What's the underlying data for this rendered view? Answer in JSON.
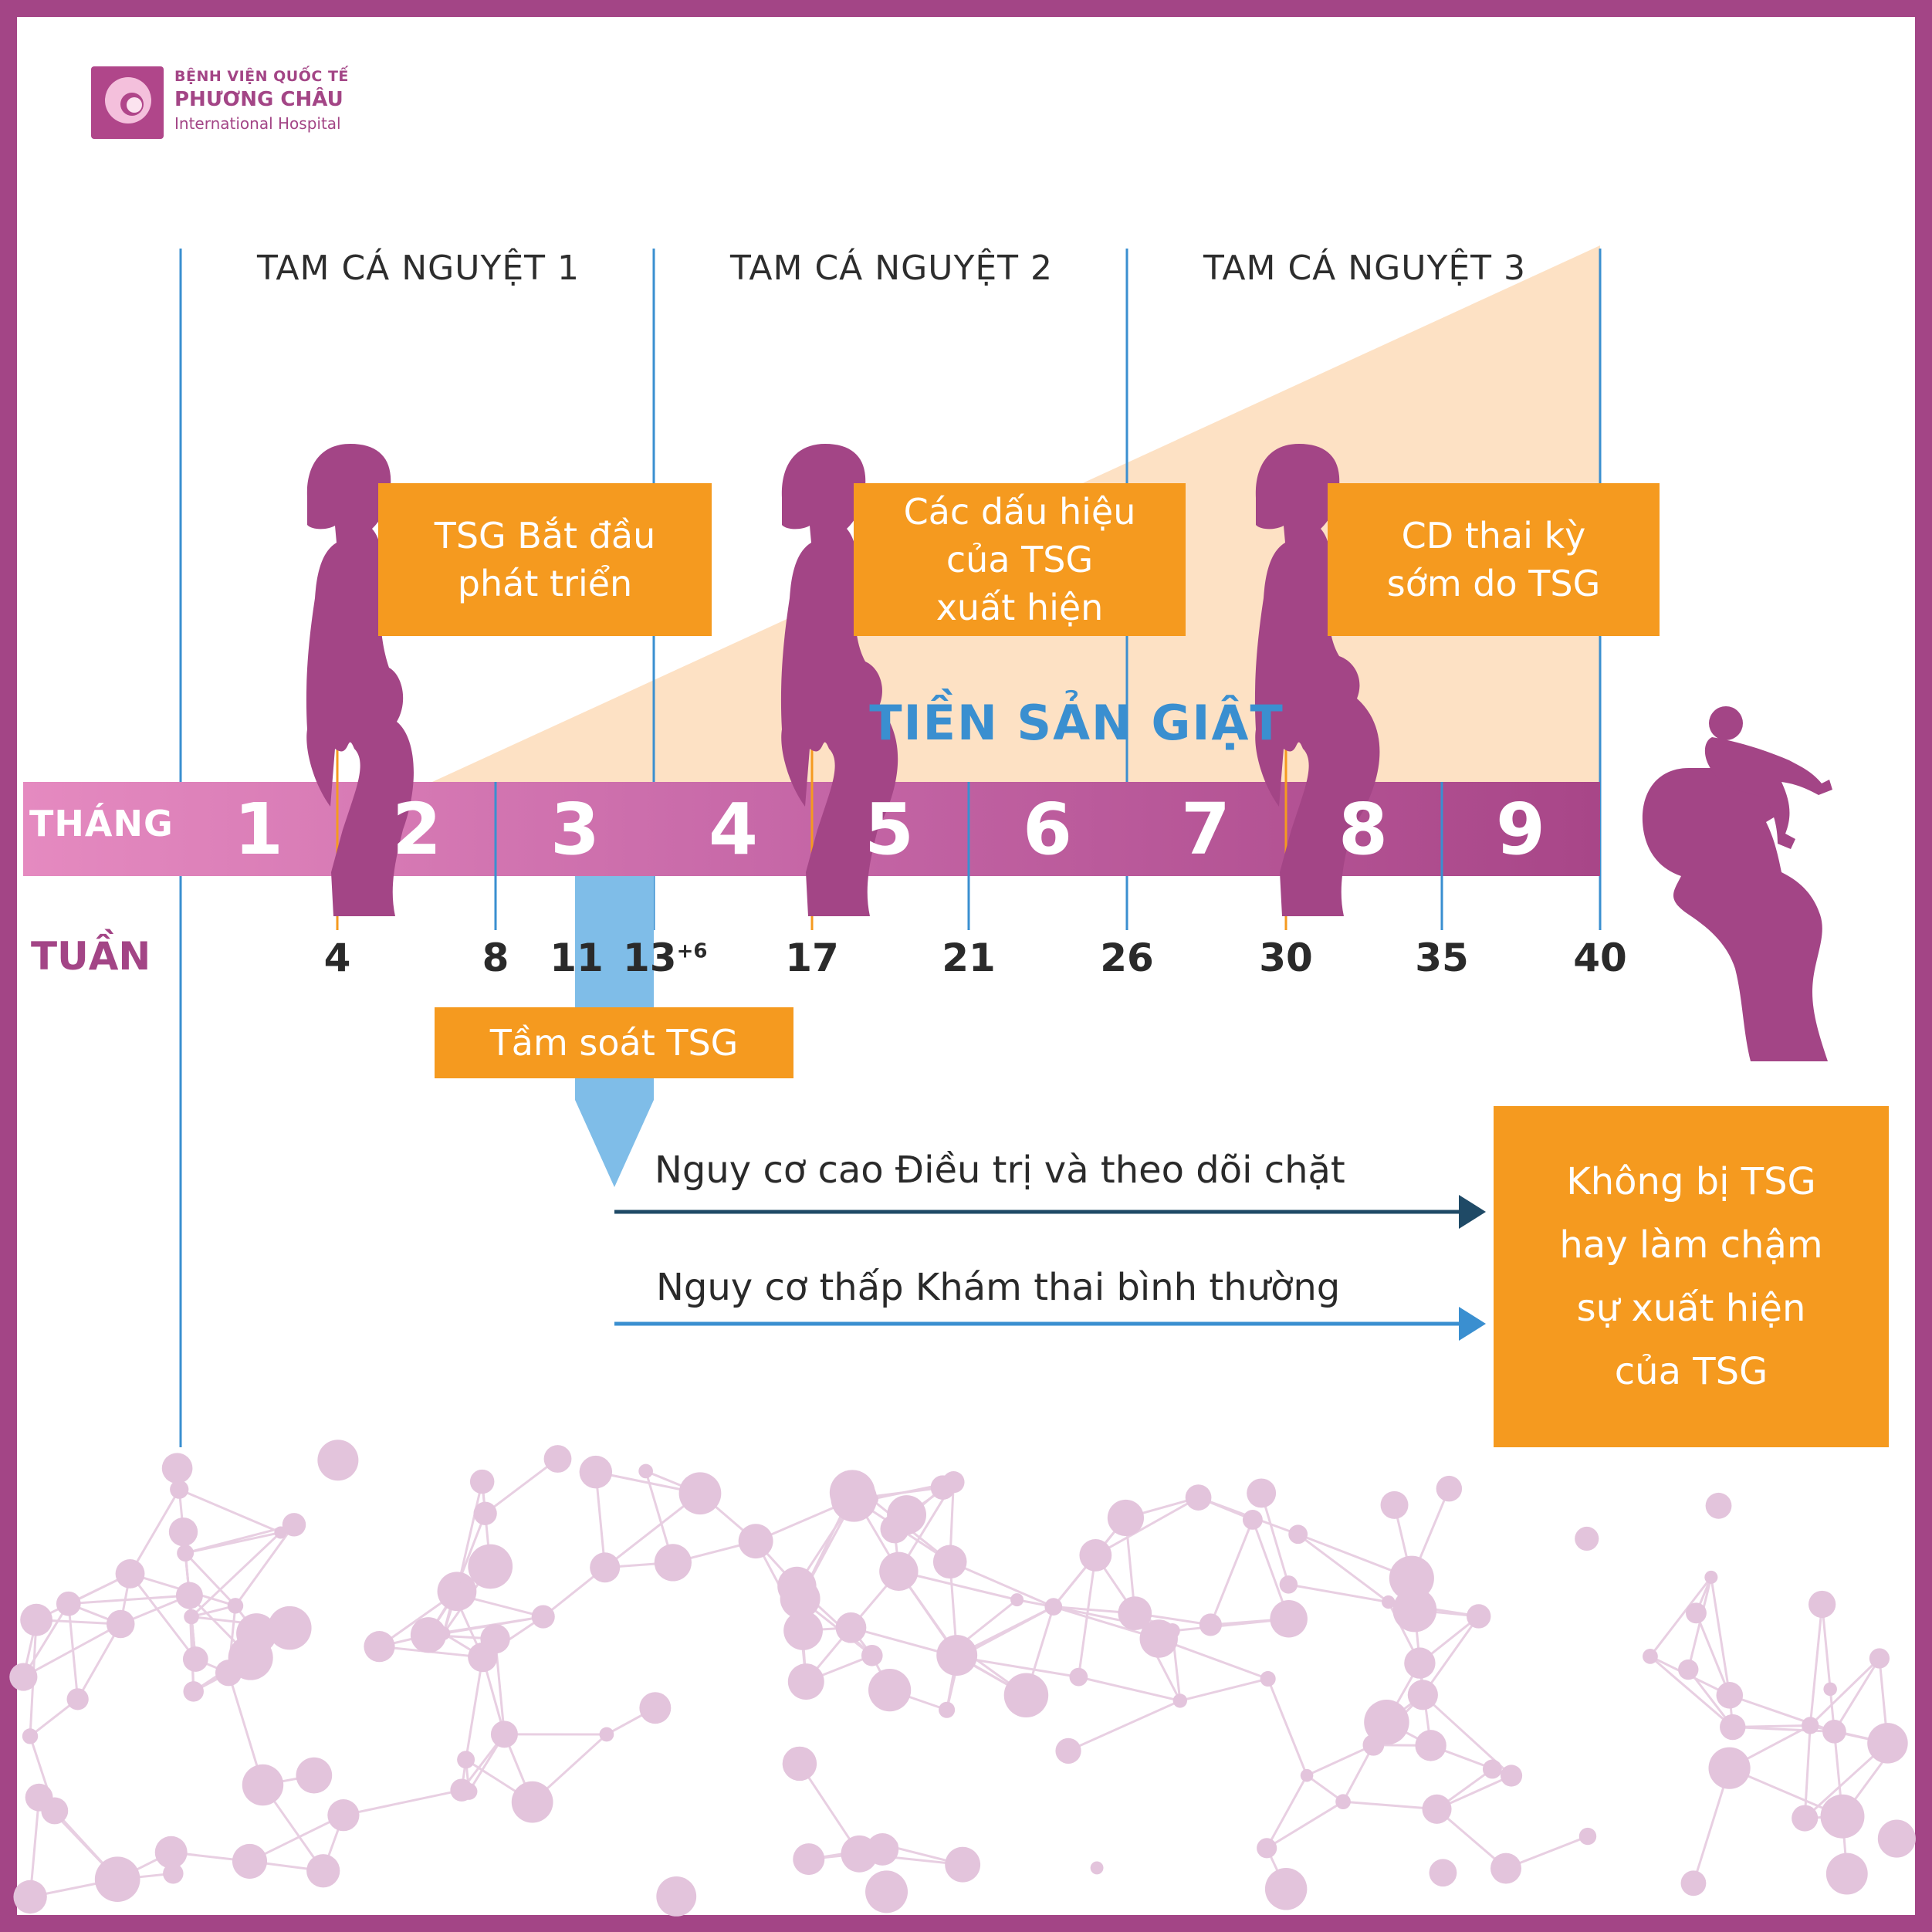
{
  "logo": {
    "line1": "BỆNH VIỆN QUỐC TẾ",
    "line2": "PHƯƠNG CHÂU",
    "line3": "International Hospital"
  },
  "trimesters": [
    "TAM CÁ NGUYỆT 1",
    "TAM CÁ NGUYỆT 2",
    "TAM CÁ NGUYỆT 3"
  ],
  "callouts": [
    {
      "text": "TSG Bắt đầu\nphát triển"
    },
    {
      "text": "Các dấu hiệu\ncủa TSG\nxuất hiện"
    },
    {
      "text": "CD thai kỳ\nsớm do TSG"
    }
  ],
  "disease_label": "TIỀN SẢN GIẬT",
  "months": {
    "label": "THÁNG",
    "values": [
      "1",
      "2",
      "3",
      "4",
      "5",
      "6",
      "7",
      "8",
      "9"
    ]
  },
  "weeks": {
    "label": "TUẦN",
    "values": [
      "4",
      "8",
      "11",
      "13",
      "17",
      "21",
      "26",
      "30",
      "35",
      "40"
    ],
    "week13_suffix": "+6"
  },
  "screening": {
    "label": "Tầm soát TSG"
  },
  "paths": {
    "high": "Nguy cơ cao Điều trị và theo dõi chặt",
    "low": "Nguy cơ thấp Khám thai bình thường"
  },
  "outcome": {
    "text": "Không bị TSG\nhay làm chậm\nsự xuất hiện\ncủa TSG"
  },
  "colors": {
    "frame": "#a34586",
    "accent_orange": "#f59a1f",
    "accent_blue": "#3a8fd0",
    "dark_arrow": "#1f4a66",
    "silhouette": "#a34586",
    "wedge": "#fde1c4"
  }
}
